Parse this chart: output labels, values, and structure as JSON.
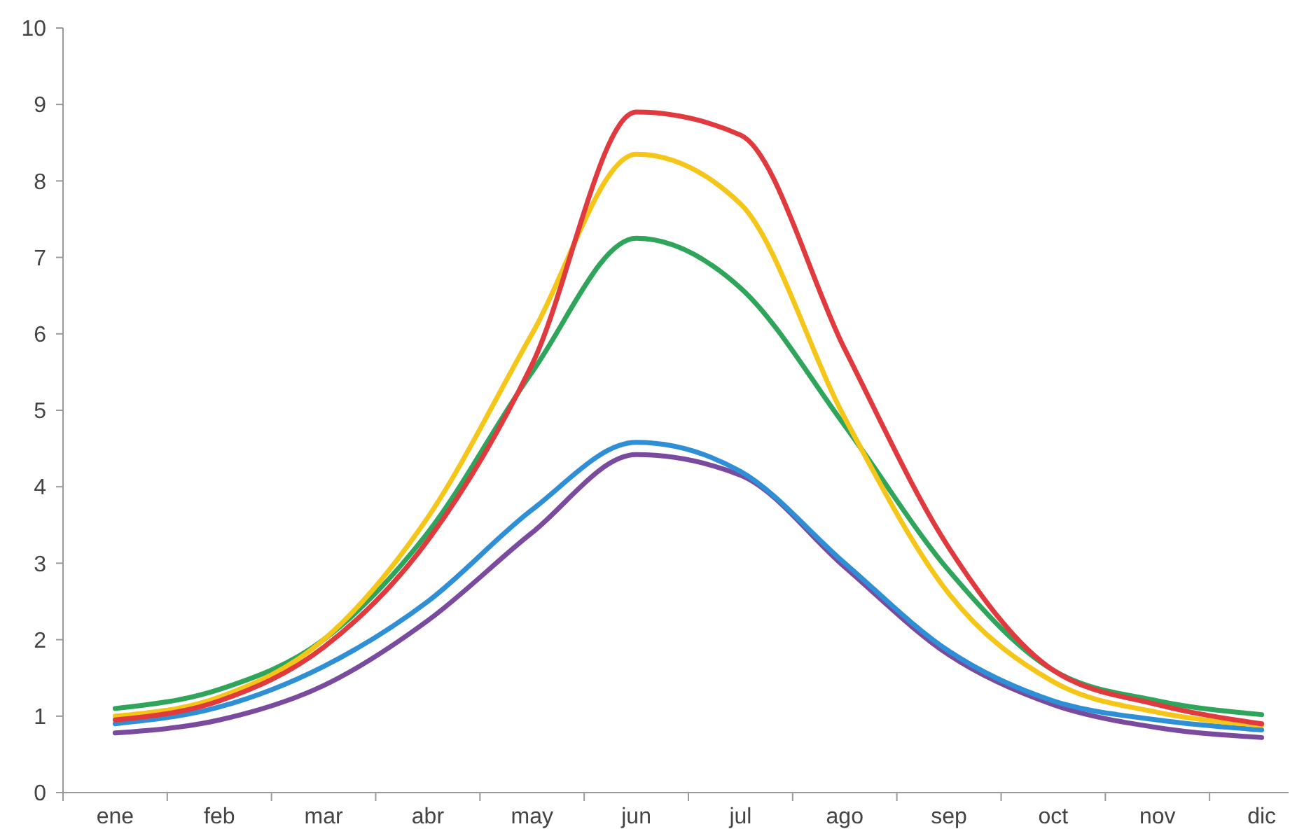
{
  "chart_data": {
    "type": "line",
    "categories": [
      "ene",
      "feb",
      "mar",
      "abr",
      "may",
      "jun",
      "jul",
      "ago",
      "sep",
      "oct",
      "nov",
      "dic"
    ],
    "ylim": [
      0,
      10
    ],
    "yticks": [
      0,
      1,
      2,
      3,
      4,
      5,
      6,
      7,
      8,
      9,
      10
    ],
    "grid": false,
    "marker": "none",
    "line_style": "solid",
    "series": [
      {
        "color": "#7a4a9e",
        "values": [
          0.78,
          0.95,
          1.4,
          2.25,
          3.4,
          4.42,
          4.15,
          2.95,
          1.8,
          1.15,
          0.85,
          0.72
        ]
      },
      {
        "color": "#2f8fd6",
        "values": [
          0.9,
          1.12,
          1.65,
          2.5,
          3.7,
          4.58,
          4.2,
          3.0,
          1.85,
          1.2,
          0.95,
          0.82
        ]
      },
      {
        "color": "#2ea55a",
        "values": [
          1.1,
          1.35,
          2.0,
          3.4,
          5.5,
          7.25,
          6.6,
          4.8,
          2.9,
          1.6,
          1.2,
          1.02
        ]
      },
      {
        "color": "#f5c518",
        "values": [
          1.0,
          1.25,
          2.0,
          3.6,
          6.0,
          8.35,
          7.7,
          4.9,
          2.6,
          1.45,
          1.05,
          0.88
        ]
      },
      {
        "color": "#e03a3e",
        "values": [
          0.95,
          1.2,
          1.9,
          3.3,
          5.6,
          8.9,
          8.6,
          5.8,
          3.2,
          1.6,
          1.15,
          0.9
        ]
      }
    ]
  }
}
